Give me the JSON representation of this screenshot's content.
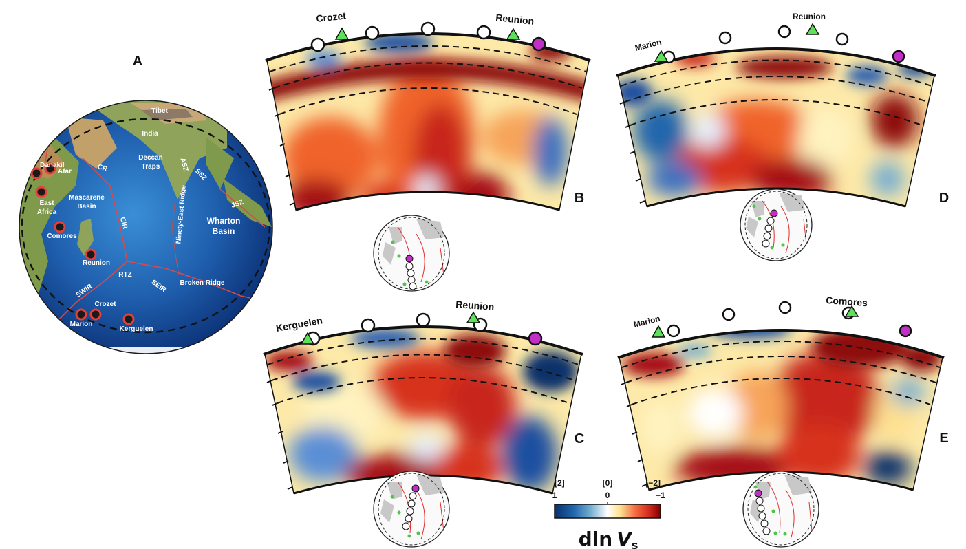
{
  "panels": {
    "a": {
      "label": "A"
    },
    "b": {
      "label": "B",
      "volcanoes": [
        "Crozet",
        "Reunion"
      ]
    },
    "c": {
      "label": "C",
      "volcanoes": [
        "Kerguelen",
        "Reunion"
      ]
    },
    "d": {
      "label": "D",
      "volcanoes": [
        "Marion",
        "Reunion"
      ]
    },
    "e": {
      "label": "E",
      "volcanoes": [
        "Marion",
        "Comores"
      ]
    }
  },
  "globe_labels": [
    "Tibet",
    "India",
    "Deccan",
    "Traps",
    "Danakil",
    "Afar",
    "CR",
    "Mascarene",
    "Basin",
    "East",
    "Africa",
    "Comores",
    "Reunion",
    "CIR",
    "ASZ",
    "SSZ",
    "JSZ",
    "Ninety-East Ridge",
    "Wharton",
    "Basin",
    "RTZ",
    "SWIR",
    "SEIR",
    "Broken Ridge",
    "Crozet",
    "Marion",
    "Kerguelen"
  ],
  "colorbar": {
    "title": "dln",
    "title_var": "V",
    "title_sub": "s",
    "top_ticks": [
      "[2]",
      "[0]",
      "[−2]"
    ],
    "bottom_ticks": [
      "1",
      "0",
      "−1"
    ],
    "colors": [
      "#08306b",
      "#2166ac",
      "#74add1",
      "#ffffff",
      "#fee090",
      "#f46d43",
      "#d7301f",
      "#7f0000"
    ]
  }
}
